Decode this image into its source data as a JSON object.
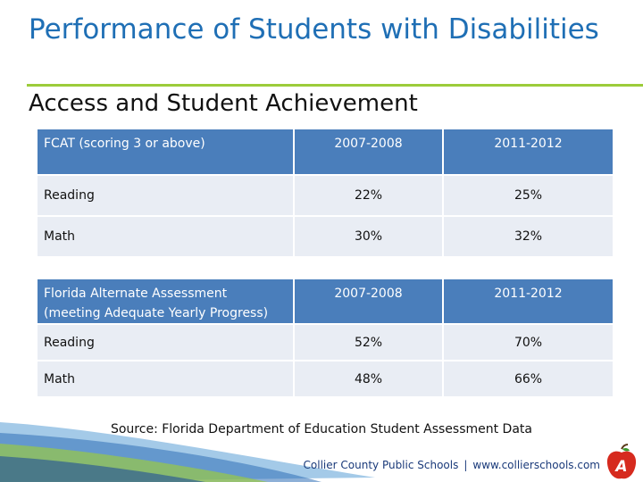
{
  "title": "Performance of Students with Disabilities",
  "subtitle": "Access and Student Achievement",
  "tables": [
    {
      "header_label": "FCAT (scoring 3 or above)",
      "year1": "2007-2008",
      "year2": "2011-2012",
      "rows": [
        {
          "label": "Reading",
          "v1": "22%",
          "v2": "25%"
        },
        {
          "label": "Math",
          "v1": "30%",
          "v2": "32%"
        }
      ]
    },
    {
      "header_label": "Florida Alternate Assessment (meeting Adequate Yearly Progress)",
      "year1": "2007-2008",
      "year2": "2011-2012",
      "rows": [
        {
          "label": "Reading",
          "v1": "52%",
          "v2": "70%"
        },
        {
          "label": "Math",
          "v1": "48%",
          "v2": "66%"
        }
      ]
    }
  ],
  "source": "Source: Florida Department of Education Student Assessment Data",
  "footer": {
    "org": "Collier County Public Schools",
    "separator": "|",
    "url": "www.collierschools.com"
  },
  "logo": {
    "icon": "apple-icon",
    "text": "A"
  },
  "colors": {
    "title": "#1f6fb5",
    "header_bg": "#4a7ebb",
    "row_bg": "#e9edf4",
    "accent_rule": "#9ccc3a",
    "apple": "#d62a1e"
  }
}
